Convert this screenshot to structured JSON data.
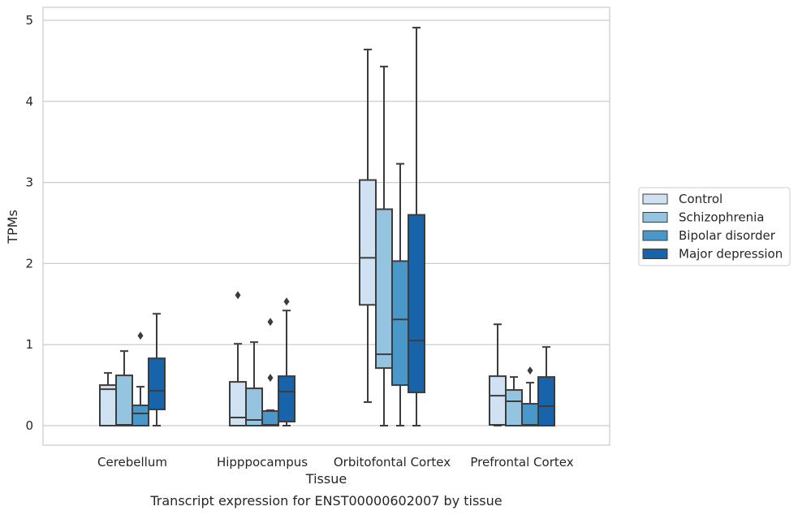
{
  "chart_data": {
    "type": "box",
    "xlabel": "Tissue",
    "ylabel": "TPMs",
    "caption": "Transcript expression for ENST00000602007 by tissue",
    "ylim": [
      -0.24,
      5.16
    ],
    "yticks": [
      0,
      1,
      2,
      3,
      4,
      5
    ],
    "grid": true,
    "legend_position": "right",
    "categories": [
      "Cerebellum",
      "Hipppocampus",
      "Orbitofontal Cortex",
      "Prefrontal Cortex"
    ],
    "series": [
      {
        "name": "Control",
        "color": "#d0e1f2",
        "boxes": [
          {
            "whislo": 0,
            "q1": 0,
            "med": 0.45,
            "q3": 0.5,
            "whishi": 0.65,
            "fliers": []
          },
          {
            "whislo": 0,
            "q1": 0,
            "med": 0.1,
            "q3": 0.54,
            "whishi": 1.01,
            "fliers": [
              1.61
            ]
          },
          {
            "whislo": 0.29,
            "q1": 1.49,
            "med": 2.07,
            "q3": 3.03,
            "whishi": 4.64,
            "fliers": []
          },
          {
            "whislo": 0,
            "q1": 0.01,
            "med": 0.37,
            "q3": 0.61,
            "whishi": 1.25,
            "fliers": []
          }
        ]
      },
      {
        "name": "Schizophrenia",
        "color": "#94c4df",
        "boxes": [
          {
            "whislo": 0,
            "q1": 0,
            "med": 0.01,
            "q3": 0.62,
            "whishi": 0.92,
            "fliers": []
          },
          {
            "whislo": 0,
            "q1": 0,
            "med": 0.07,
            "q3": 0.46,
            "whishi": 1.03,
            "fliers": []
          },
          {
            "whislo": 0,
            "q1": 0.71,
            "med": 0.88,
            "q3": 2.67,
            "whishi": 4.43,
            "fliers": []
          },
          {
            "whislo": 0,
            "q1": 0,
            "med": 0.3,
            "q3": 0.44,
            "whishi": 0.6,
            "fliers": []
          }
        ]
      },
      {
        "name": "Bipolar disorder",
        "color": "#4a98c9",
        "boxes": [
          {
            "whislo": 0,
            "q1": 0,
            "med": 0.15,
            "q3": 0.25,
            "whishi": 0.48,
            "fliers": [
              1.11
            ]
          },
          {
            "whislo": 0,
            "q1": 0,
            "med": 0.01,
            "q3": 0.18,
            "whishi": 0.19,
            "fliers": [
              0.59,
              1.28
            ]
          },
          {
            "whislo": 0,
            "q1": 0.5,
            "med": 1.31,
            "q3": 2.03,
            "whishi": 3.23,
            "fliers": []
          },
          {
            "whislo": 0,
            "q1": 0,
            "med": 0.01,
            "q3": 0.27,
            "whishi": 0.53,
            "fliers": [
              0.68
            ]
          }
        ]
      },
      {
        "name": "Major depression",
        "color": "#1764ab",
        "boxes": [
          {
            "whislo": 0,
            "q1": 0.2,
            "med": 0.43,
            "q3": 0.83,
            "whishi": 1.38,
            "fliers": []
          },
          {
            "whislo": 0,
            "q1": 0.05,
            "med": 0.42,
            "q3": 0.61,
            "whishi": 1.42,
            "fliers": [
              1.53
            ]
          },
          {
            "whislo": 0,
            "q1": 0.41,
            "med": 1.05,
            "q3": 2.6,
            "whishi": 4.91,
            "fliers": []
          },
          {
            "whislo": 0,
            "q1": 0,
            "med": 0.24,
            "q3": 0.6,
            "whishi": 0.97,
            "fliers": []
          }
        ]
      }
    ]
  }
}
